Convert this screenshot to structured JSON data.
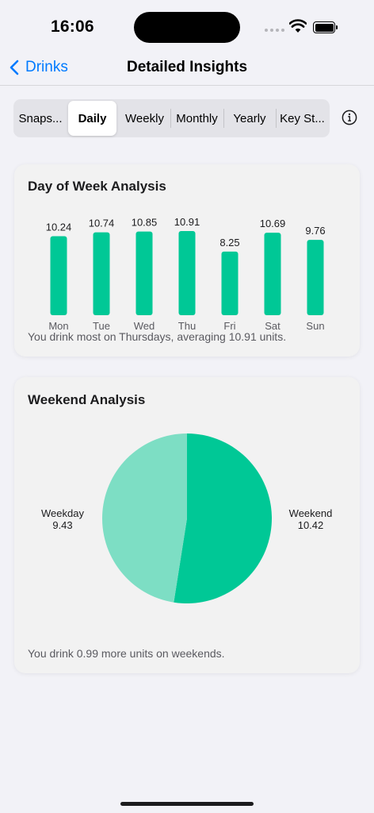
{
  "status_bar": {
    "time": "16:06"
  },
  "nav": {
    "back_label": "Drinks",
    "title": "Detailed Insights"
  },
  "tabs": [
    {
      "label": "Snaps...",
      "selected": false
    },
    {
      "label": "Daily",
      "selected": true
    },
    {
      "label": "Weekly",
      "selected": false
    },
    {
      "label": "Monthly",
      "selected": false
    },
    {
      "label": "Yearly",
      "selected": false
    },
    {
      "label": "Key St...",
      "selected": false
    }
  ],
  "colors": {
    "accent": "#007aff",
    "bar": "#00c896",
    "pie_weekend": "#00c896",
    "pie_weekday": "#7ddec4"
  },
  "day_of_week": {
    "title": "Day of Week Analysis",
    "note": "You drink most on Thursdays, averaging 10.91 units."
  },
  "weekend": {
    "title": "Weekend Analysis",
    "weekday_label": "Weekday",
    "weekday_value": "9.43",
    "weekend_label": "Weekend",
    "weekend_value": "10.42",
    "note": "You drink 0.99 more units on weekends."
  },
  "chart_data": [
    {
      "type": "bar",
      "title": "Day of Week Analysis",
      "categories": [
        "Mon",
        "Tue",
        "Wed",
        "Thu",
        "Fri",
        "Sat",
        "Sun"
      ],
      "values": [
        10.24,
        10.74,
        10.85,
        10.91,
        8.25,
        10.69,
        9.76
      ],
      "data_labels": [
        "10.24",
        "10.74",
        "10.85",
        "10.91",
        "8.25",
        "10.69",
        "9.76"
      ],
      "ylim": [
        0,
        10.91
      ],
      "grid": false
    },
    {
      "type": "pie",
      "title": "Weekend Analysis",
      "categories": [
        "Weekday",
        "Weekend"
      ],
      "values": [
        9.43,
        10.42
      ]
    }
  ]
}
